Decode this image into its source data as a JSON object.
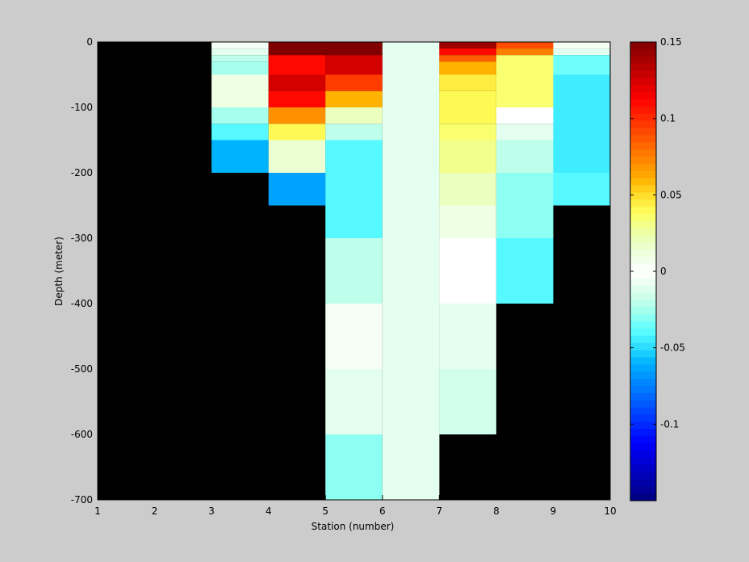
{
  "chart_data": {
    "type": "heatmap",
    "title": "",
    "xlabel": "Station (number)",
    "ylabel": "Depth (meter)",
    "xlim": [
      1,
      10
    ],
    "ylim": [
      -700,
      0
    ],
    "xticks": [
      "1",
      "2",
      "3",
      "4",
      "5",
      "6",
      "7",
      "8",
      "9",
      "10"
    ],
    "yticks": [
      "0",
      "-100",
      "-200",
      "-300",
      "-400",
      "-500",
      "-600",
      "-700"
    ],
    "background_color": "#000000",
    "colormap": "jet",
    "clim": [
      -0.15,
      0.15
    ],
    "colorbar_ticks": [
      "0.15",
      "0.1",
      "0.05",
      "0",
      "-0.05",
      "-0.1"
    ],
    "cells": [
      {
        "x": [
          3,
          4
        ],
        "depth": [
          0,
          10
        ],
        "value": -0.005
      },
      {
        "x": [
          3,
          4
        ],
        "depth": [
          10,
          20
        ],
        "value": -0.01
      },
      {
        "x": [
          3,
          4
        ],
        "depth": [
          20,
          30
        ],
        "value": -0.02
      },
      {
        "x": [
          3,
          4
        ],
        "depth": [
          30,
          50
        ],
        "value": -0.025
      },
      {
        "x": [
          3,
          4
        ],
        "depth": [
          50,
          100
        ],
        "value": 0.01
      },
      {
        "x": [
          3,
          4
        ],
        "depth": [
          100,
          125
        ],
        "value": -0.025
      },
      {
        "x": [
          3,
          4
        ],
        "depth": [
          125,
          150
        ],
        "value": -0.04
      },
      {
        "x": [
          3,
          4
        ],
        "depth": [
          150,
          200
        ],
        "value": -0.06
      },
      {
        "x": [
          4,
          5
        ],
        "depth": [
          0,
          20
        ],
        "value": 0.15
      },
      {
        "x": [
          4,
          5
        ],
        "depth": [
          20,
          50
        ],
        "value": 0.11
      },
      {
        "x": [
          4,
          5
        ],
        "depth": [
          50,
          75
        ],
        "value": 0.125
      },
      {
        "x": [
          4,
          5
        ],
        "depth": [
          75,
          100
        ],
        "value": 0.11
      },
      {
        "x": [
          4,
          5
        ],
        "depth": [
          100,
          125
        ],
        "value": 0.07
      },
      {
        "x": [
          4,
          5
        ],
        "depth": [
          125,
          150
        ],
        "value": 0.04
      },
      {
        "x": [
          4,
          5
        ],
        "depth": [
          150,
          200
        ],
        "value": 0.015
      },
      {
        "x": [
          4,
          5
        ],
        "depth": [
          200,
          250
        ],
        "value": -0.065
      },
      {
        "x": [
          5,
          6
        ],
        "depth": [
          0,
          20
        ],
        "value": 0.15
      },
      {
        "x": [
          5,
          6
        ],
        "depth": [
          20,
          50
        ],
        "value": 0.125
      },
      {
        "x": [
          5,
          6
        ],
        "depth": [
          50,
          75
        ],
        "value": 0.095
      },
      {
        "x": [
          5,
          6
        ],
        "depth": [
          75,
          100
        ],
        "value": 0.06
      },
      {
        "x": [
          5,
          6
        ],
        "depth": [
          100,
          125
        ],
        "value": 0.02
      },
      {
        "x": [
          5,
          6
        ],
        "depth": [
          125,
          150
        ],
        "value": -0.02
      },
      {
        "x": [
          5,
          6
        ],
        "depth": [
          150,
          300
        ],
        "value": -0.04
      },
      {
        "x": [
          5,
          6
        ],
        "depth": [
          300,
          400
        ],
        "value": -0.02
      },
      {
        "x": [
          5,
          6
        ],
        "depth": [
          400,
          500
        ],
        "value": 0.005
      },
      {
        "x": [
          5,
          6
        ],
        "depth": [
          500,
          600
        ],
        "value": -0.01
      },
      {
        "x": [
          5,
          6
        ],
        "depth": [
          600,
          700
        ],
        "value": -0.03
      },
      {
        "x": [
          6,
          7
        ],
        "depth": [
          0,
          700
        ],
        "value": -0.01
      },
      {
        "x": [
          7,
          8
        ],
        "depth": [
          0,
          10
        ],
        "value": 0.14
      },
      {
        "x": [
          7,
          8
        ],
        "depth": [
          10,
          20
        ],
        "value": 0.11
      },
      {
        "x": [
          7,
          8
        ],
        "depth": [
          20,
          30
        ],
        "value": 0.085
      },
      {
        "x": [
          7,
          8
        ],
        "depth": [
          30,
          50
        ],
        "value": 0.06
      },
      {
        "x": [
          7,
          8
        ],
        "depth": [
          50,
          75
        ],
        "value": 0.045
      },
      {
        "x": [
          7,
          8
        ],
        "depth": [
          75,
          100
        ],
        "value": 0.04
      },
      {
        "x": [
          7,
          8
        ],
        "depth": [
          100,
          125
        ],
        "value": 0.04
      },
      {
        "x": [
          7,
          8
        ],
        "depth": [
          125,
          150
        ],
        "value": 0.035
      },
      {
        "x": [
          7,
          8
        ],
        "depth": [
          150,
          200
        ],
        "value": 0.03
      },
      {
        "x": [
          7,
          8
        ],
        "depth": [
          200,
          250
        ],
        "value": 0.02
      },
      {
        "x": [
          7,
          8
        ],
        "depth": [
          250,
          300
        ],
        "value": 0.01
      },
      {
        "x": [
          7,
          8
        ],
        "depth": [
          300,
          400
        ],
        "value": 0.0
      },
      {
        "x": [
          7,
          8
        ],
        "depth": [
          400,
          500
        ],
        "value": -0.01
      },
      {
        "x": [
          7,
          8
        ],
        "depth": [
          500,
          600
        ],
        "value": -0.015
      },
      {
        "x": [
          8,
          9
        ],
        "depth": [
          0,
          10
        ],
        "value": 0.09
      },
      {
        "x": [
          8,
          9
        ],
        "depth": [
          10,
          20
        ],
        "value": 0.075
      },
      {
        "x": [
          8,
          9
        ],
        "depth": [
          20,
          100
        ],
        "value": 0.035
      },
      {
        "x": [
          8,
          9
        ],
        "depth": [
          100,
          125
        ],
        "value": 0.0
      },
      {
        "x": [
          8,
          9
        ],
        "depth": [
          125,
          150
        ],
        "value": -0.01
      },
      {
        "x": [
          8,
          9
        ],
        "depth": [
          150,
          200
        ],
        "value": -0.02
      },
      {
        "x": [
          8,
          9
        ],
        "depth": [
          200,
          300
        ],
        "value": -0.03
      },
      {
        "x": [
          8,
          9
        ],
        "depth": [
          300,
          400
        ],
        "value": -0.04
      },
      {
        "x": [
          9,
          10
        ],
        "depth": [
          0,
          10
        ],
        "value": 0.005
      },
      {
        "x": [
          9,
          10
        ],
        "depth": [
          10,
          20
        ],
        "value": -0.01
      },
      {
        "x": [
          9,
          10
        ],
        "depth": [
          20,
          50
        ],
        "value": -0.035
      },
      {
        "x": [
          9,
          10
        ],
        "depth": [
          50,
          200
        ],
        "value": -0.045
      },
      {
        "x": [
          9,
          10
        ],
        "depth": [
          200,
          250
        ],
        "value": -0.04
      }
    ]
  }
}
